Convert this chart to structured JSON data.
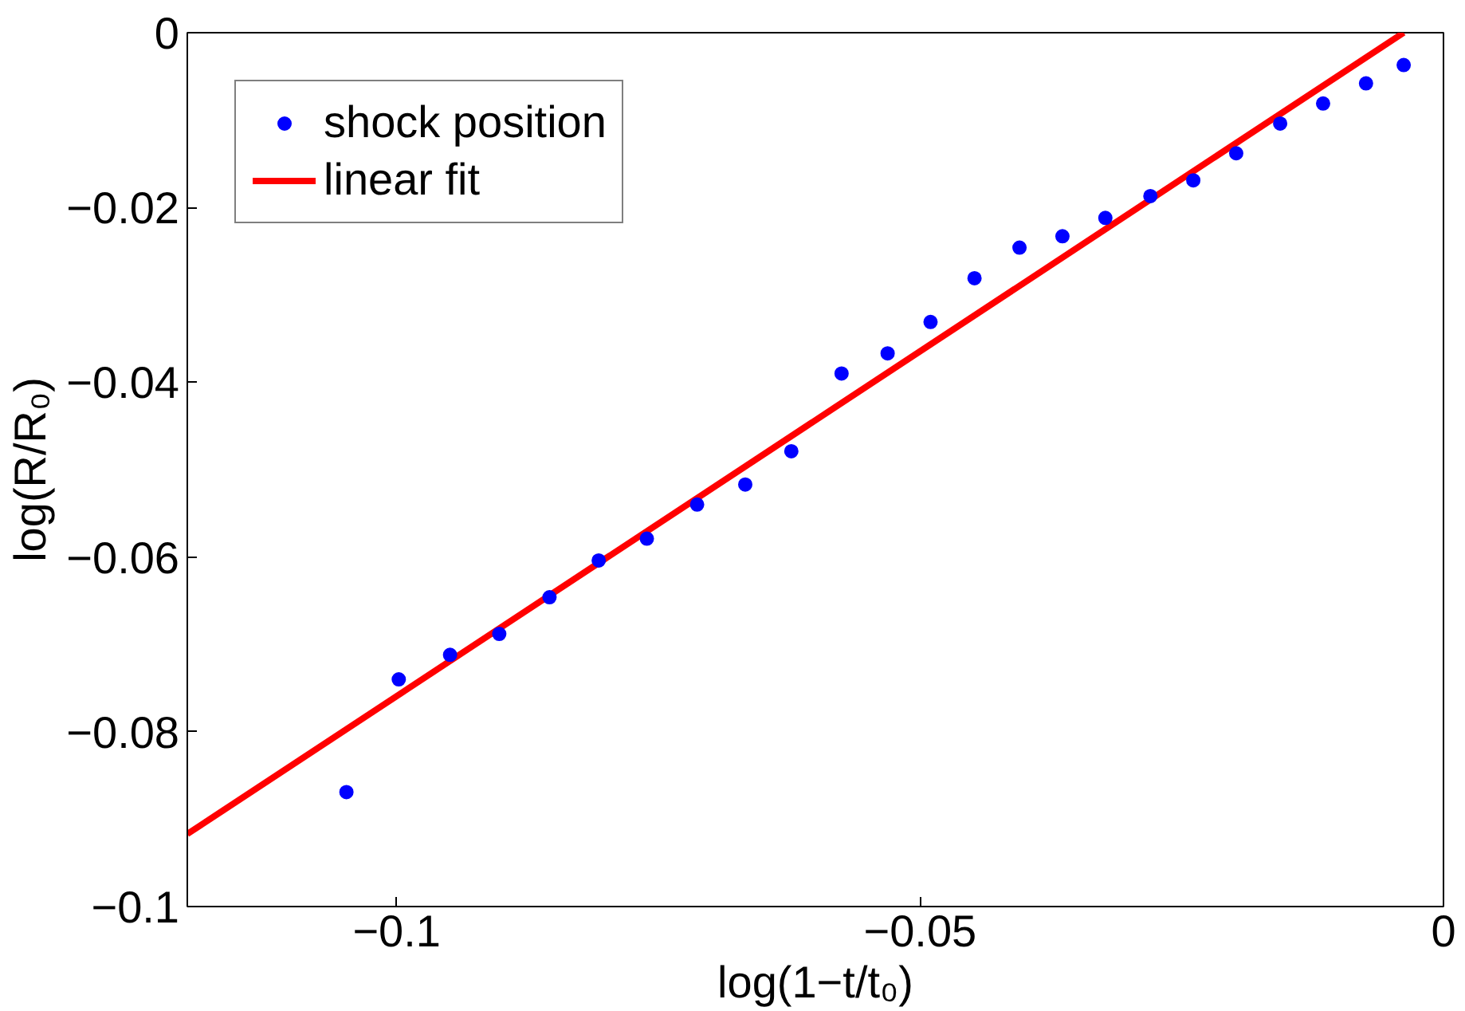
{
  "chart_data": {
    "type": "scatter",
    "xlabel": "log(1−t/t₀)",
    "ylabel": "log(R/R₀)",
    "xlim": [
      -0.12,
      0
    ],
    "ylim": [
      -0.1,
      0
    ],
    "xticks": [
      {
        "value": -0.1,
        "label": "−0.1"
      },
      {
        "value": -0.05,
        "label": "−0.05"
      },
      0
    ],
    "yticks": [
      {
        "value": -0.1,
        "label": "−0.1"
      },
      {
        "value": -0.08,
        "label": "−0.08"
      },
      {
        "value": -0.06,
        "label": "−0.06"
      },
      {
        "value": -0.04,
        "label": "−0.04"
      },
      {
        "value": -0.02,
        "label": "−0.02"
      },
      0
    ],
    "grid": false,
    "legend": "top left",
    "series": [
      {
        "name": "shock position",
        "marker": "circle",
        "color": "#0000ff",
        "x": [
          -0.1048,
          -0.0998,
          -0.0949,
          -0.0902,
          -0.0854,
          -0.0807,
          -0.0761,
          -0.0713,
          -0.0667,
          -0.0623,
          -0.0575,
          -0.0531,
          -0.049,
          -0.0448,
          -0.0405,
          -0.0364,
          -0.0323,
          -0.028,
          -0.0239,
          -0.0198,
          -0.0156,
          -0.0115,
          -0.0074,
          -0.0038
        ],
        "values": [
          -0.0869,
          -0.074,
          -0.0712,
          -0.0688,
          -0.0646,
          -0.0604,
          -0.0579,
          -0.054,
          -0.0517,
          -0.0479,
          -0.039,
          -0.0367,
          -0.0331,
          -0.0281,
          -0.0246,
          -0.0233,
          -0.0212,
          -0.0187,
          -0.0169,
          -0.0138,
          -0.0104,
          -0.0081,
          -0.0058,
          -0.0037
        ]
      },
      {
        "name": "linear fit",
        "type": "line",
        "color": "#ff0000",
        "line_style": "solid",
        "x": [
          -0.12,
          -0.0038
        ],
        "values": [
          -0.0917,
          0
        ]
      }
    ]
  }
}
